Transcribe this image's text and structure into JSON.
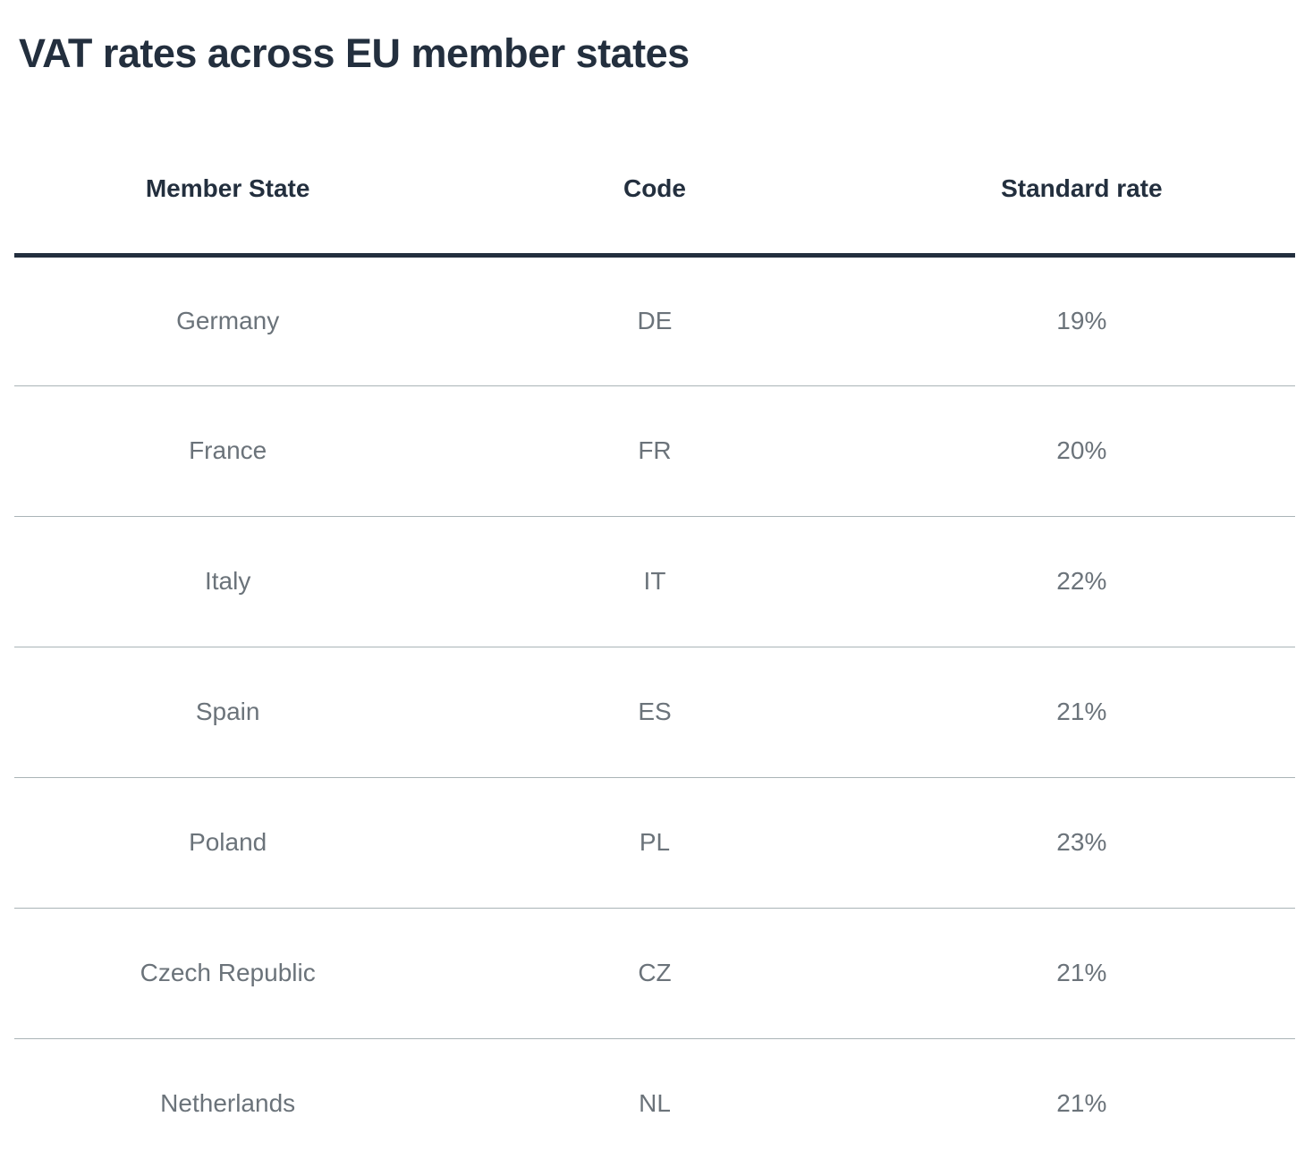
{
  "page": {
    "title": "VAT rates across EU member states"
  },
  "colors": {
    "heading_text": "#232f3e",
    "body_text": "#6b737a",
    "header_rule": "#232f3e",
    "row_divider": "#aab4b7",
    "background": "#ffffff"
  },
  "table": {
    "columns": [
      "Member State",
      "Code",
      "Standard rate"
    ],
    "rows": [
      {
        "state": "Germany",
        "code": "DE",
        "rate": "19%"
      },
      {
        "state": "France",
        "code": "FR",
        "rate": "20%"
      },
      {
        "state": "Italy",
        "code": "IT",
        "rate": "22%"
      },
      {
        "state": "Spain",
        "code": "ES",
        "rate": "21%"
      },
      {
        "state": "Poland",
        "code": "PL",
        "rate": "23%"
      },
      {
        "state": "Czech Republic",
        "code": "CZ",
        "rate": "21%"
      },
      {
        "state": "Netherlands",
        "code": "NL",
        "rate": "21%"
      }
    ]
  }
}
